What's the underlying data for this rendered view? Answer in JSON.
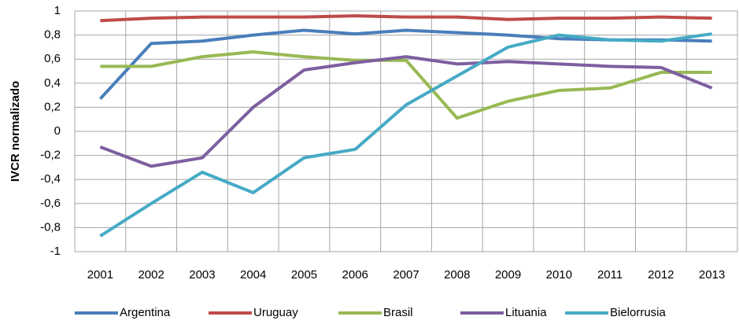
{
  "chart_data": {
    "type": "line",
    "y_label": "IVCR normalizado",
    "categories": [
      "2001",
      "2002",
      "2003",
      "2004",
      "2005",
      "2006",
      "2007",
      "2008",
      "2009",
      "2010",
      "2011",
      "2012",
      "2013"
    ],
    "series": [
      {
        "name": "Argentina",
        "color": "#4a7ebb",
        "values": [
          0.27,
          0.73,
          0.75,
          0.8,
          0.84,
          0.81,
          0.84,
          0.82,
          0.8,
          0.77,
          0.76,
          0.76,
          0.75
        ]
      },
      {
        "name": "Uruguay",
        "color": "#be4b48",
        "values": [
          0.92,
          0.94,
          0.95,
          0.95,
          0.95,
          0.96,
          0.95,
          0.95,
          0.93,
          0.94,
          0.94,
          0.95,
          0.94
        ]
      },
      {
        "name": "Brasil",
        "color": "#98b954",
        "values": [
          0.54,
          0.54,
          0.62,
          0.66,
          0.62,
          0.59,
          0.59,
          0.11,
          0.25,
          0.34,
          0.36,
          0.49,
          0.49
        ]
      },
      {
        "name": "Lituania",
        "color": "#7d5fa0",
        "values": [
          -0.13,
          -0.29,
          -0.22,
          0.2,
          0.51,
          0.57,
          0.62,
          0.56,
          0.58,
          0.56,
          0.54,
          0.53,
          0.36
        ]
      },
      {
        "name": "Bielorrusia",
        "color": "#46aac5",
        "values": [
          -0.87,
          -0.6,
          -0.34,
          -0.51,
          -0.22,
          -0.15,
          0.22,
          0.46,
          0.7,
          0.8,
          0.76,
          0.75,
          0.81
        ]
      }
    ],
    "ylim": [
      -1,
      1
    ],
    "yticks": [
      -1,
      {
        "value": -0.8,
        "label": "-0,8"
      },
      {
        "value": -0.6,
        "label": "-0,6"
      },
      {
        "value": -0.4,
        "label": "-0,4"
      },
      {
        "value": -0.2,
        "label": "-0,2"
      },
      0,
      {
        "value": 0.2,
        "label": "0,2"
      },
      {
        "value": 0.4,
        "label": "0,4"
      },
      {
        "value": 0.6,
        "label": "0,6"
      },
      {
        "value": 0.8,
        "label": "0,8"
      },
      1
    ],
    "grid": true,
    "legend": "bottom"
  }
}
